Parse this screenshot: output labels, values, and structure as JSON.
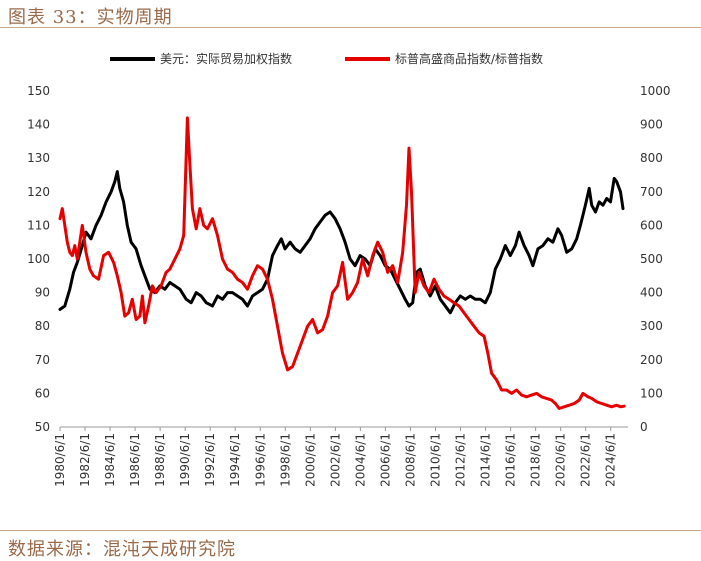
{
  "header": {
    "title": "图表 33：实物周期"
  },
  "footer": {
    "source": "数据来源：混沌天成研究院"
  },
  "colors": {
    "dollar": "#000000",
    "gsci": "#e60000",
    "accent": "#9a6a4b"
  },
  "chart_data": {
    "type": "line",
    "title": "图表 33：实物周期",
    "legend_position": "top",
    "grid": false,
    "left_axis": {
      "ylim": [
        50,
        150
      ],
      "ticks": [
        50,
        60,
        70,
        80,
        90,
        100,
        110,
        120,
        130,
        140,
        150
      ]
    },
    "right_axis": {
      "ylim": [
        0,
        1000
      ],
      "ticks": [
        0,
        100,
        200,
        300,
        400,
        500,
        600,
        700,
        800,
        900,
        1000
      ]
    },
    "x_range": [
      1980.42,
      2025.8
    ],
    "x_ticks": [
      "1980/6/1",
      "1982/6/1",
      "1984/6/1",
      "1986/6/1",
      "1988/6/1",
      "1990/6/1",
      "1992/6/1",
      "1994/6/1",
      "1996/6/1",
      "1998/6/1",
      "2000/6/1",
      "2002/6/1",
      "2004/6/1",
      "2006/6/1",
      "2008/6/1",
      "2010/6/1",
      "2012/6/1",
      "2014/6/1",
      "2016/6/1",
      "2018/6/1",
      "2020/6/1",
      "2022/6/1",
      "2024/6/1"
    ],
    "series": [
      {
        "name": "美元：实际贸易加权指数",
        "axis": "left",
        "color": "#000000",
        "points": [
          [
            1980.42,
            85
          ],
          [
            1980.8,
            86
          ],
          [
            1981.2,
            91
          ],
          [
            1981.5,
            96
          ],
          [
            1981.8,
            99
          ],
          [
            1982.2,
            104
          ],
          [
            1982.5,
            108
          ],
          [
            1982.9,
            106
          ],
          [
            1983.3,
            110
          ],
          [
            1983.7,
            113
          ],
          [
            1984.1,
            117
          ],
          [
            1984.5,
            120
          ],
          [
            1984.8,
            123
          ],
          [
            1985.0,
            126
          ],
          [
            1985.2,
            121
          ],
          [
            1985.5,
            117
          ],
          [
            1985.8,
            110
          ],
          [
            1986.1,
            105
          ],
          [
            1986.5,
            103
          ],
          [
            1986.9,
            98
          ],
          [
            1987.2,
            95
          ],
          [
            1987.6,
            91
          ],
          [
            1988.0,
            90
          ],
          [
            1988.4,
            92
          ],
          [
            1988.8,
            91
          ],
          [
            1989.2,
            93
          ],
          [
            1989.6,
            92
          ],
          [
            1990.0,
            91
          ],
          [
            1990.5,
            88
          ],
          [
            1990.9,
            87
          ],
          [
            1991.3,
            90
          ],
          [
            1991.7,
            89
          ],
          [
            1992.1,
            87
          ],
          [
            1992.6,
            86
          ],
          [
            1993.0,
            89
          ],
          [
            1993.4,
            88
          ],
          [
            1993.8,
            90
          ],
          [
            1994.2,
            90
          ],
          [
            1994.6,
            89
          ],
          [
            1995.0,
            88
          ],
          [
            1995.4,
            86
          ],
          [
            1995.8,
            89
          ],
          [
            1996.2,
            90
          ],
          [
            1996.6,
            91
          ],
          [
            1997.0,
            94
          ],
          [
            1997.4,
            101
          ],
          [
            1997.8,
            104
          ],
          [
            1998.1,
            106
          ],
          [
            1998.4,
            103
          ],
          [
            1998.8,
            105
          ],
          [
            1999.2,
            103
          ],
          [
            1999.6,
            102
          ],
          [
            2000.0,
            104
          ],
          [
            2000.4,
            106
          ],
          [
            2000.8,
            109
          ],
          [
            2001.2,
            111
          ],
          [
            2001.6,
            113
          ],
          [
            2002.0,
            114
          ],
          [
            2002.4,
            112
          ],
          [
            2002.8,
            109
          ],
          [
            2003.2,
            105
          ],
          [
            2003.6,
            100
          ],
          [
            2004.0,
            98
          ],
          [
            2004.4,
            101
          ],
          [
            2004.8,
            100
          ],
          [
            2005.2,
            98
          ],
          [
            2005.6,
            103
          ],
          [
            2006.0,
            101
          ],
          [
            2006.4,
            98
          ],
          [
            2006.8,
            97
          ],
          [
            2007.2,
            94
          ],
          [
            2007.6,
            91
          ],
          [
            2008.0,
            88
          ],
          [
            2008.3,
            86
          ],
          [
            2008.6,
            87
          ],
          [
            2008.9,
            96
          ],
          [
            2009.2,
            97
          ],
          [
            2009.6,
            92
          ],
          [
            2010.0,
            89
          ],
          [
            2010.4,
            92
          ],
          [
            2010.8,
            88
          ],
          [
            2011.2,
            86
          ],
          [
            2011.6,
            84
          ],
          [
            2012.0,
            87
          ],
          [
            2012.4,
            89
          ],
          [
            2012.8,
            88
          ],
          [
            2013.2,
            89
          ],
          [
            2013.6,
            88
          ],
          [
            2014.0,
            88
          ],
          [
            2014.4,
            87
          ],
          [
            2014.8,
            90
          ],
          [
            2015.2,
            97
          ],
          [
            2015.6,
            100
          ],
          [
            2016.0,
            104
          ],
          [
            2016.4,
            101
          ],
          [
            2016.8,
            104
          ],
          [
            2017.1,
            108
          ],
          [
            2017.5,
            104
          ],
          [
            2017.9,
            101
          ],
          [
            2018.2,
            98
          ],
          [
            2018.6,
            103
          ],
          [
            2019.0,
            104
          ],
          [
            2019.4,
            106
          ],
          [
            2019.8,
            105
          ],
          [
            2020.2,
            109
          ],
          [
            2020.5,
            107
          ],
          [
            2020.9,
            102
          ],
          [
            2021.3,
            103
          ],
          [
            2021.7,
            106
          ],
          [
            2022.0,
            110
          ],
          [
            2022.4,
            116
          ],
          [
            2022.7,
            121
          ],
          [
            2022.9,
            116
          ],
          [
            2023.2,
            114
          ],
          [
            2023.5,
            117
          ],
          [
            2023.8,
            116
          ],
          [
            2024.1,
            118
          ],
          [
            2024.4,
            117
          ],
          [
            2024.7,
            124
          ],
          [
            2024.9,
            123
          ],
          [
            2025.2,
            120
          ],
          [
            2025.4,
            115
          ]
        ]
      },
      {
        "name": "标普高盛商品指数/标普指数",
        "axis": "right",
        "color": "#e60000",
        "points": [
          [
            1980.42,
            620
          ],
          [
            1980.6,
            650
          ],
          [
            1980.8,
            600
          ],
          [
            1981.0,
            550
          ],
          [
            1981.2,
            520
          ],
          [
            1981.4,
            510
          ],
          [
            1981.6,
            540
          ],
          [
            1981.8,
            500
          ],
          [
            1982.0,
            550
          ],
          [
            1982.2,
            600
          ],
          [
            1982.5,
            520
          ],
          [
            1982.8,
            470
          ],
          [
            1983.1,
            450
          ],
          [
            1983.5,
            440
          ],
          [
            1983.9,
            510
          ],
          [
            1984.3,
            520
          ],
          [
            1984.7,
            490
          ],
          [
            1985.0,
            450
          ],
          [
            1985.3,
            400
          ],
          [
            1985.6,
            330
          ],
          [
            1985.9,
            340
          ],
          [
            1986.2,
            380
          ],
          [
            1986.5,
            320
          ],
          [
            1986.8,
            330
          ],
          [
            1987.0,
            390
          ],
          [
            1987.2,
            310
          ],
          [
            1987.5,
            360
          ],
          [
            1987.8,
            420
          ],
          [
            1988.1,
            400
          ],
          [
            1988.5,
            420
          ],
          [
            1988.9,
            460
          ],
          [
            1989.2,
            470
          ],
          [
            1989.6,
            500
          ],
          [
            1990.0,
            530
          ],
          [
            1990.3,
            570
          ],
          [
            1990.6,
            920
          ],
          [
            1990.8,
            780
          ],
          [
            1991.0,
            650
          ],
          [
            1991.3,
            590
          ],
          [
            1991.6,
            650
          ],
          [
            1991.9,
            600
          ],
          [
            1992.2,
            590
          ],
          [
            1992.6,
            620
          ],
          [
            1993.0,
            570
          ],
          [
            1993.4,
            500
          ],
          [
            1993.8,
            470
          ],
          [
            1994.2,
            460
          ],
          [
            1994.6,
            440
          ],
          [
            1995.0,
            430
          ],
          [
            1995.4,
            410
          ],
          [
            1995.8,
            450
          ],
          [
            1996.2,
            480
          ],
          [
            1996.6,
            470
          ],
          [
            1997.0,
            440
          ],
          [
            1997.4,
            380
          ],
          [
            1997.8,
            300
          ],
          [
            1998.2,
            220
          ],
          [
            1998.6,
            170
          ],
          [
            1999.0,
            180
          ],
          [
            1999.4,
            220
          ],
          [
            1999.8,
            260
          ],
          [
            2000.2,
            300
          ],
          [
            2000.6,
            320
          ],
          [
            2001.0,
            280
          ],
          [
            2001.4,
            290
          ],
          [
            2001.8,
            330
          ],
          [
            2002.2,
            400
          ],
          [
            2002.6,
            420
          ],
          [
            2003.0,
            490
          ],
          [
            2003.4,
            380
          ],
          [
            2003.8,
            400
          ],
          [
            2004.2,
            430
          ],
          [
            2004.6,
            500
          ],
          [
            2005.0,
            450
          ],
          [
            2005.4,
            510
          ],
          [
            2005.8,
            550
          ],
          [
            2006.2,
            520
          ],
          [
            2006.6,
            460
          ],
          [
            2007.0,
            480
          ],
          [
            2007.4,
            430
          ],
          [
            2007.8,
            520
          ],
          [
            2008.1,
            660
          ],
          [
            2008.3,
            830
          ],
          [
            2008.5,
            700
          ],
          [
            2008.8,
            400
          ],
          [
            2009.1,
            460
          ],
          [
            2009.5,
            420
          ],
          [
            2009.9,
            400
          ],
          [
            2010.3,
            440
          ],
          [
            2010.7,
            410
          ],
          [
            2011.1,
            390
          ],
          [
            2011.5,
            380
          ],
          [
            2011.9,
            370
          ],
          [
            2012.3,
            360
          ],
          [
            2012.7,
            340
          ],
          [
            2013.1,
            320
          ],
          [
            2013.5,
            300
          ],
          [
            2013.9,
            280
          ],
          [
            2014.3,
            270
          ],
          [
            2014.6,
            220
          ],
          [
            2014.9,
            160
          ],
          [
            2015.3,
            140
          ],
          [
            2015.7,
            110
          ],
          [
            2016.1,
            110
          ],
          [
            2016.5,
            100
          ],
          [
            2016.9,
            110
          ],
          [
            2017.3,
            95
          ],
          [
            2017.7,
            90
          ],
          [
            2018.1,
            95
          ],
          [
            2018.5,
            100
          ],
          [
            2018.9,
            90
          ],
          [
            2019.3,
            85
          ],
          [
            2019.7,
            80
          ],
          [
            2020.0,
            70
          ],
          [
            2020.3,
            55
          ],
          [
            2020.7,
            60
          ],
          [
            2021.1,
            65
          ],
          [
            2021.5,
            70
          ],
          [
            2021.9,
            80
          ],
          [
            2022.2,
            100
          ],
          [
            2022.6,
            90
          ],
          [
            2022.9,
            85
          ],
          [
            2023.3,
            75
          ],
          [
            2023.7,
            70
          ],
          [
            2024.1,
            65
          ],
          [
            2024.5,
            60
          ],
          [
            2024.9,
            65
          ],
          [
            2025.2,
            60
          ],
          [
            2025.5,
            62
          ]
        ]
      }
    ]
  }
}
